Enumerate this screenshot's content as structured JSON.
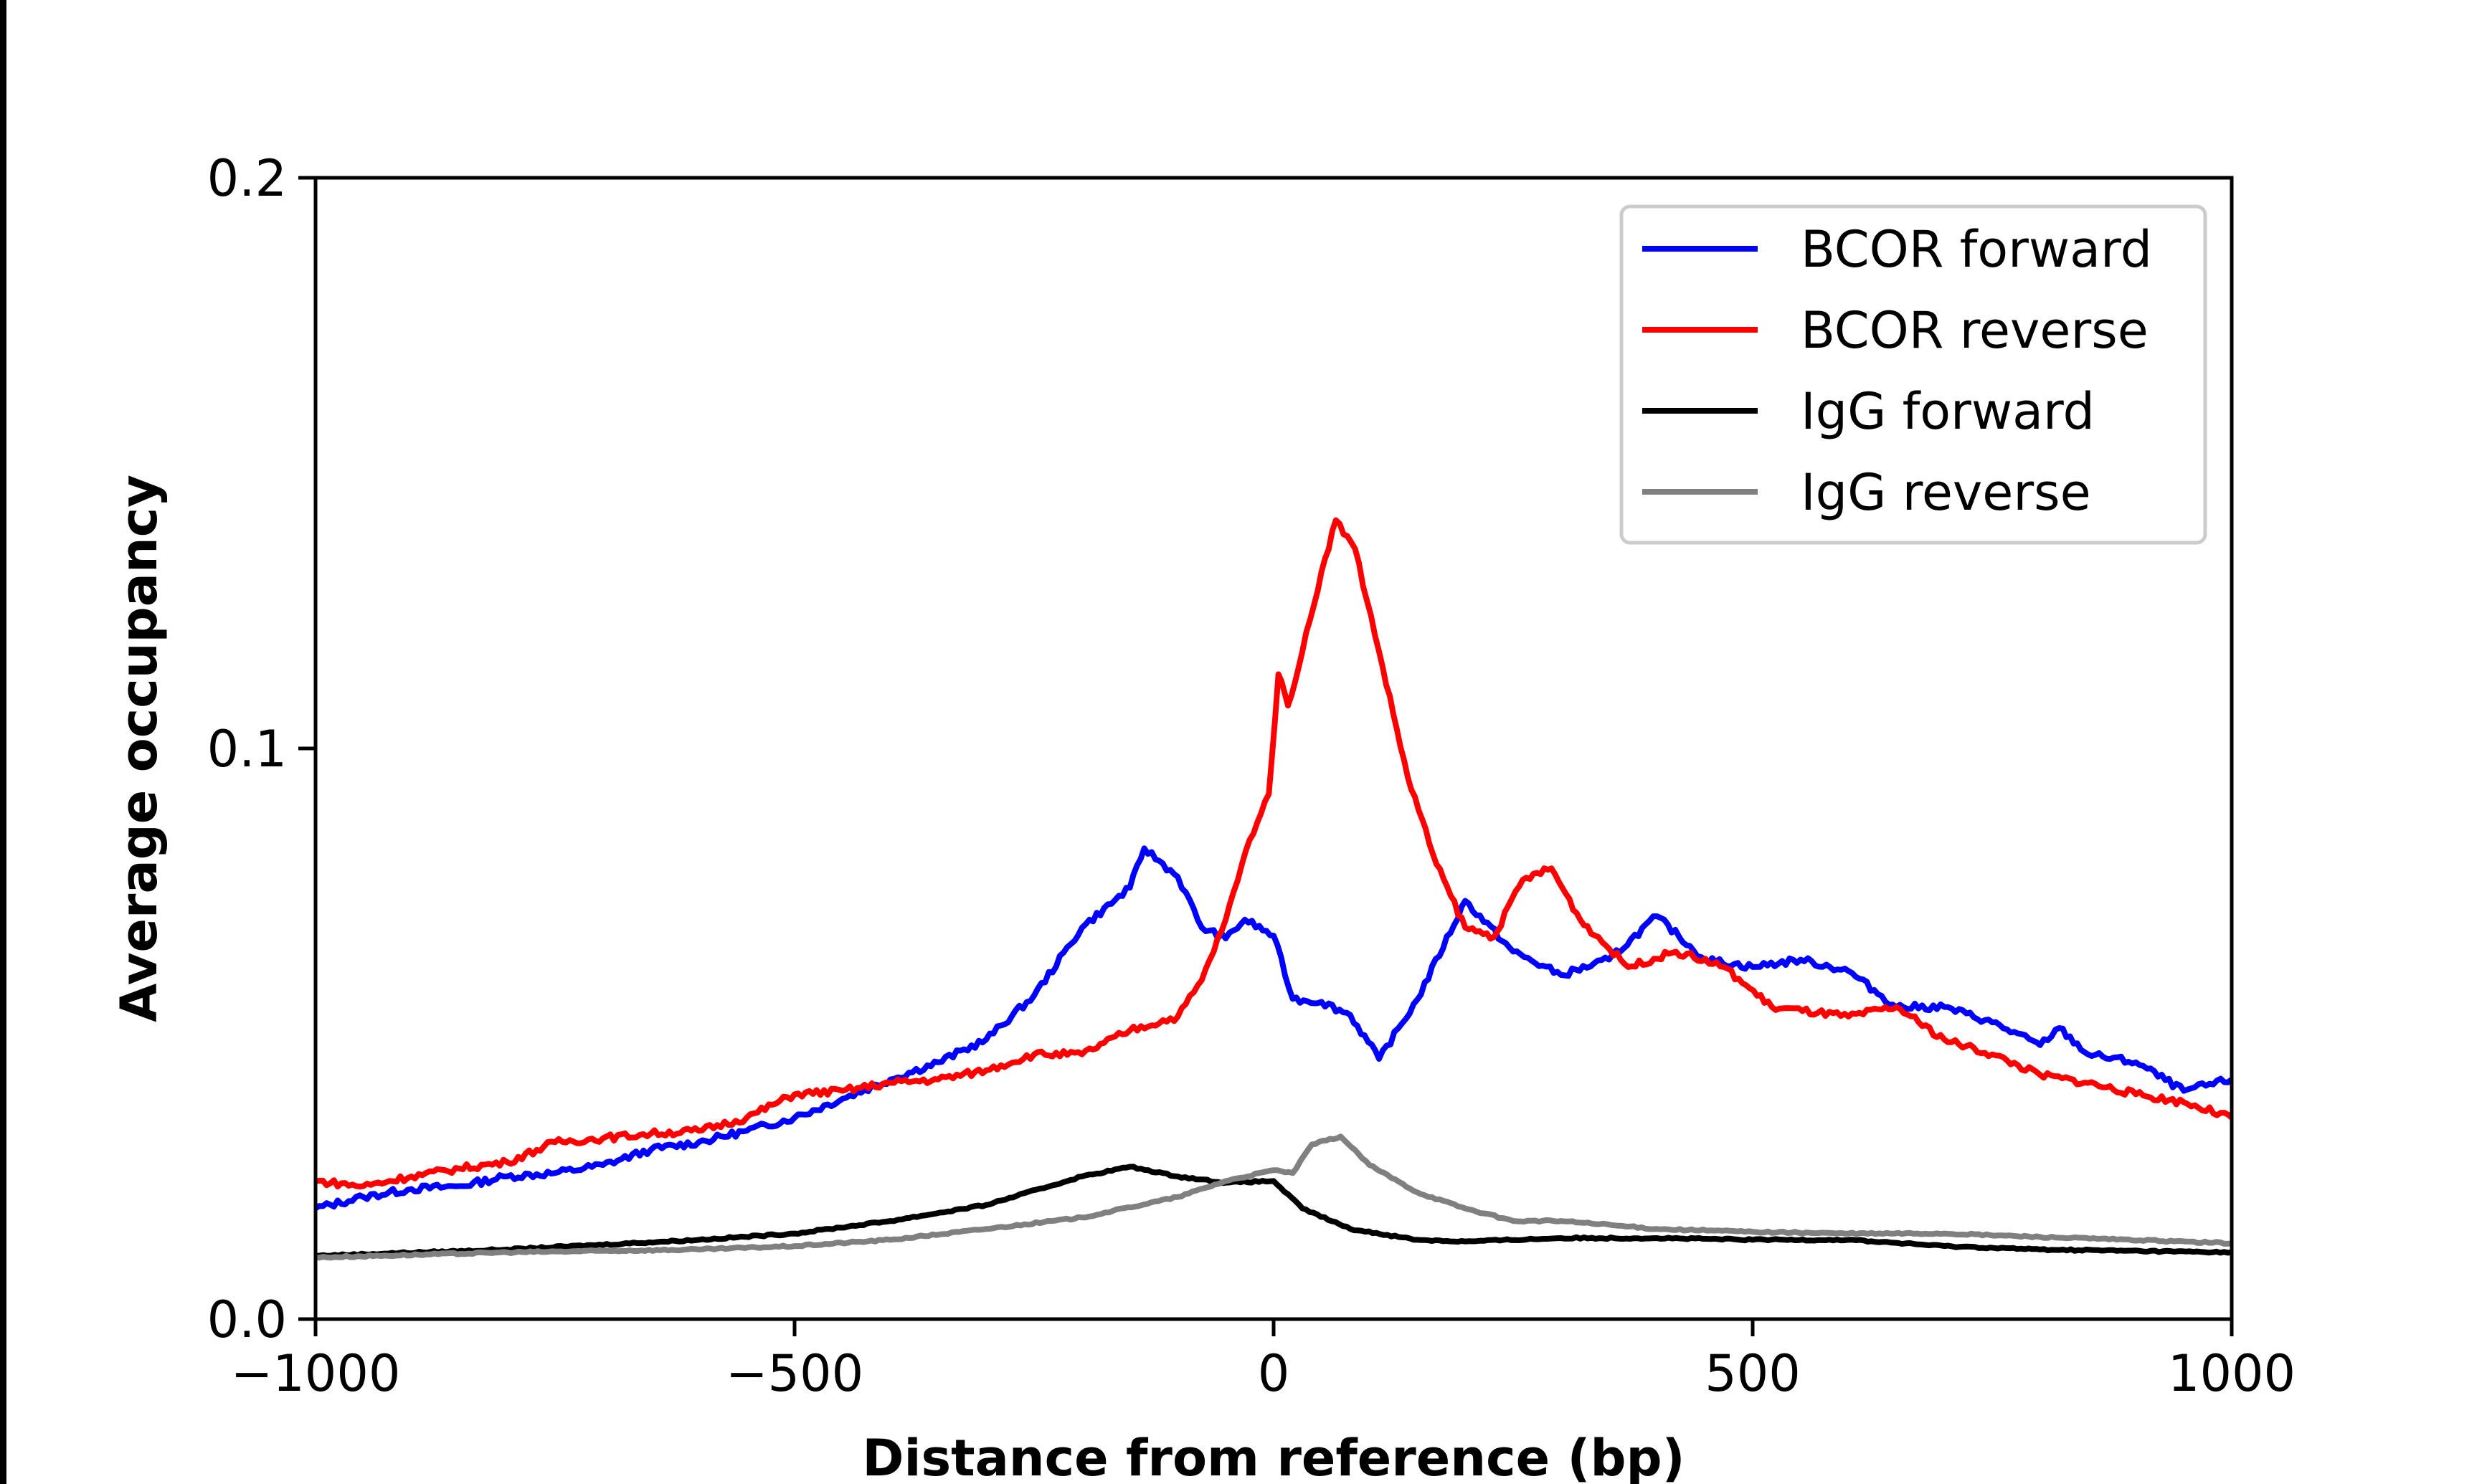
{
  "chart_data": {
    "type": "line",
    "title": "",
    "xlabel": "Distance from reference (bp)",
    "ylabel": "Average occupancy",
    "xlim": [
      -1000,
      1000
    ],
    "ylim": [
      0.0,
      0.2
    ],
    "xticks": [
      -1000,
      -500,
      0,
      500,
      1000
    ],
    "xtick_labels": [
      "−1000",
      "−500",
      "0",
      "500",
      "1000"
    ],
    "yticks": [
      0.0,
      0.1,
      0.2
    ],
    "ytick_labels": [
      "0.0",
      "0.1",
      "0.2"
    ],
    "grid": false,
    "legend_position": "top-right",
    "series": [
      {
        "name": "BCOR forward",
        "color": "#0000ff",
        "x": [
          -1000,
          -950,
          -900,
          -850,
          -800,
          -750,
          -700,
          -650,
          -600,
          -550,
          -500,
          -450,
          -400,
          -350,
          -300,
          -250,
          -200,
          -150,
          -135,
          -100,
          -75,
          -50,
          -30,
          0,
          20,
          50,
          80,
          110,
          150,
          200,
          250,
          300,
          350,
          400,
          450,
          500,
          550,
          600,
          650,
          700,
          750,
          800,
          820,
          850,
          900,
          950,
          1000
        ],
        "y": [
          0.0194,
          0.0214,
          0.0228,
          0.0233,
          0.025,
          0.0256,
          0.027,
          0.0297,
          0.031,
          0.033,
          0.0353,
          0.0386,
          0.042,
          0.045,
          0.049,
          0.0567,
          0.0686,
          0.0756,
          0.0825,
          0.0775,
          0.0686,
          0.0667,
          0.07,
          0.0672,
          0.0561,
          0.0556,
          0.0533,
          0.0456,
          0.056,
          0.0733,
          0.0644,
          0.0603,
          0.063,
          0.0706,
          0.063,
          0.0617,
          0.063,
          0.061,
          0.0547,
          0.0547,
          0.052,
          0.048,
          0.051,
          0.0464,
          0.045,
          0.04,
          0.042
        ]
      },
      {
        "name": "BCOR reverse",
        "color": "#ff0000",
        "x": [
          -1000,
          -950,
          -900,
          -850,
          -800,
          -750,
          -700,
          -650,
          -600,
          -550,
          -500,
          -450,
          -400,
          -350,
          -300,
          -250,
          -200,
          -150,
          -100,
          -75,
          -50,
          -25,
          -5,
          5,
          15,
          30,
          50,
          65,
          85,
          110,
          140,
          170,
          200,
          230,
          260,
          290,
          320,
          370,
          420,
          470,
          520,
          600,
          650,
          700,
          750,
          800,
          850,
          900,
          950,
          1000
        ],
        "y": [
          0.0242,
          0.0233,
          0.025,
          0.0264,
          0.0275,
          0.031,
          0.0317,
          0.0325,
          0.033,
          0.0353,
          0.0394,
          0.04,
          0.0414,
          0.042,
          0.0436,
          0.0464,
          0.0464,
          0.0506,
          0.053,
          0.0594,
          0.07,
          0.084,
          0.092,
          0.113,
          0.1075,
          0.117,
          0.131,
          0.14,
          0.135,
          0.117,
          0.095,
          0.0797,
          0.0686,
          0.067,
          0.077,
          0.079,
          0.07,
          0.0617,
          0.0644,
          0.0617,
          0.0547,
          0.053,
          0.0547,
          0.049,
          0.0464,
          0.0428,
          0.0414,
          0.0394,
          0.038,
          0.0353
        ]
      },
      {
        "name": "IgG forward",
        "color": "#000000",
        "x": [
          -1000,
          -800,
          -600,
          -500,
          -400,
          -300,
          -200,
          -150,
          -100,
          -50,
          0,
          30,
          80,
          150,
          200,
          300,
          400,
          500,
          600,
          700,
          800,
          1000
        ],
        "y": [
          0.0111,
          0.0122,
          0.0139,
          0.015,
          0.0172,
          0.02,
          0.025,
          0.0267,
          0.025,
          0.0239,
          0.0242,
          0.0194,
          0.0158,
          0.0139,
          0.0136,
          0.0142,
          0.0142,
          0.0139,
          0.0139,
          0.0128,
          0.0122,
          0.0117
        ]
      },
      {
        "name": "IgG reverse",
        "color": "#808080",
        "x": [
          -1000,
          -800,
          -600,
          -500,
          -400,
          -300,
          -200,
          -100,
          -50,
          0,
          20,
          40,
          70,
          100,
          150,
          200,
          250,
          300,
          400,
          500,
          600,
          700,
          800,
          1000
        ],
        "y": [
          0.0108,
          0.0117,
          0.0122,
          0.0128,
          0.0139,
          0.0158,
          0.0178,
          0.0214,
          0.0242,
          0.0261,
          0.0256,
          0.0306,
          0.032,
          0.027,
          0.0222,
          0.0194,
          0.0172,
          0.0172,
          0.0158,
          0.0153,
          0.015,
          0.015,
          0.0144,
          0.0133
        ]
      }
    ]
  }
}
